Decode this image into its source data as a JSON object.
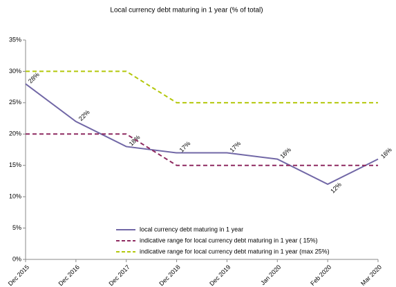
{
  "chart_data": {
    "type": "line",
    "title": "Local currency debt maturing in 1 year (% of total)",
    "categories": [
      "Dec 2015",
      "Dec 2016",
      "Dec 2017",
      "Dec 2018",
      "Dec 2019",
      "Jan 2020",
      "Feb 2020",
      "Mar 2020"
    ],
    "series": [
      {
        "name": "local currency debt maturing in 1 year",
        "color": "#7167a6",
        "dash": false,
        "values": [
          28,
          22,
          18,
          17,
          17,
          16,
          12,
          16
        ],
        "value_labels": [
          "28%",
          "22%",
          "18%",
          "17%",
          "17%",
          "16%",
          "12%",
          "16%"
        ]
      },
      {
        "name": "indicative range  for local currency debt maturing in 1 year ( 15%)",
        "color": "#8e2a60",
        "dash": true,
        "values": [
          20,
          20,
          20,
          15,
          15,
          15,
          15,
          15
        ]
      },
      {
        "name": "indicative range  for local currency debt maturing in 1 year (max 25%)",
        "color": "#b3c70a",
        "dash": true,
        "values": [
          30,
          30,
          30,
          25,
          25,
          25,
          25,
          25
        ]
      }
    ],
    "ylim": [
      0,
      35
    ],
    "yticks": [
      {
        "value": 0,
        "label": "0%"
      },
      {
        "value": 5,
        "label": "5%"
      },
      {
        "value": 10,
        "label": "10%"
      },
      {
        "value": 15,
        "label": "15%"
      },
      {
        "value": 20,
        "label": "20%"
      },
      {
        "value": 25,
        "label": "25%"
      },
      {
        "value": 30,
        "label": "30%"
      },
      {
        "value": 35,
        "label": "35%"
      }
    ],
    "grid": false
  }
}
